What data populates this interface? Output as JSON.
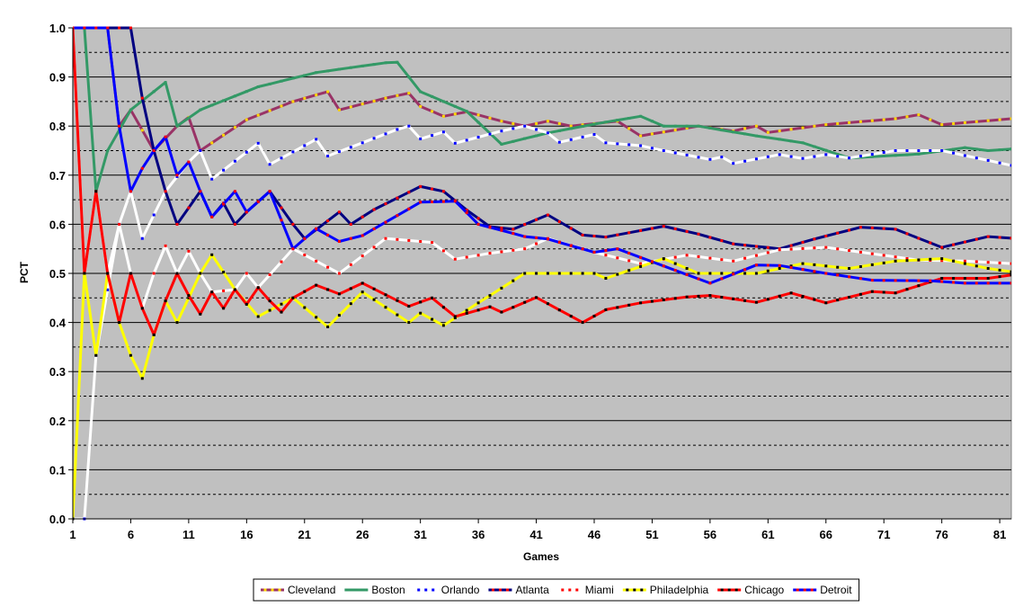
{
  "chart_data": {
    "type": "line",
    "xlabel": "Games",
    "ylabel": "PCT",
    "xlim": [
      1,
      82
    ],
    "ylim": [
      0,
      1
    ],
    "x_ticks": [
      1,
      6,
      11,
      16,
      21,
      26,
      31,
      36,
      41,
      46,
      51,
      56,
      61,
      66,
      71,
      76,
      81
    ],
    "y_ticks": [
      "0.0",
      "0.1",
      "0.2",
      "0.3",
      "0.4",
      "0.5",
      "0.6",
      "0.7",
      "0.8",
      "0.9",
      "1.0"
    ],
    "grid": true,
    "plot_background": "#c0c0c0",
    "legend_position": "bottom",
    "series": [
      {
        "name": "Cleveland",
        "color": "#993366",
        "dot_color": "#ffd700",
        "keypoints": [
          [
            1,
            1
          ],
          [
            4,
            1
          ],
          [
            5,
            0.8
          ],
          [
            6,
            0.833
          ],
          [
            8,
            0.75
          ],
          [
            10,
            0.8
          ],
          [
            11,
            0.818
          ],
          [
            12,
            0.75
          ],
          [
            16,
            0.813
          ],
          [
            20,
            0.85
          ],
          [
            23,
            0.87
          ],
          [
            24,
            0.833
          ],
          [
            28,
            0.857
          ],
          [
            30,
            0.867
          ],
          [
            31,
            0.84
          ],
          [
            33,
            0.82
          ],
          [
            35,
            0.829
          ],
          [
            38,
            0.81
          ],
          [
            40,
            0.8
          ],
          [
            42,
            0.81
          ],
          [
            44,
            0.8
          ],
          [
            48,
            0.81
          ],
          [
            50,
            0.78
          ],
          [
            55,
            0.8
          ],
          [
            58,
            0.79
          ],
          [
            60,
            0.8
          ],
          [
            61,
            0.787
          ],
          [
            66,
            0.803
          ],
          [
            72,
            0.815
          ],
          [
            74,
            0.823
          ],
          [
            76,
            0.803
          ],
          [
            82,
            0.815
          ],
          [
            83,
            0.805
          ]
        ]
      },
      {
        "name": "Boston",
        "color": "#339966",
        "dot_color": "#339966",
        "keypoints": [
          [
            1,
            1
          ],
          [
            2,
            1
          ],
          [
            3,
            0.667
          ],
          [
            4,
            0.75
          ],
          [
            6,
            0.833
          ],
          [
            9,
            0.889
          ],
          [
            10,
            0.8
          ],
          [
            12,
            0.833
          ],
          [
            17,
            0.88
          ],
          [
            22,
            0.909
          ],
          [
            28,
            0.929
          ],
          [
            29,
            0.93
          ],
          [
            31,
            0.87
          ],
          [
            35,
            0.83
          ],
          [
            38,
            0.763
          ],
          [
            42,
            0.786
          ],
          [
            46,
            0.804
          ],
          [
            50,
            0.82
          ],
          [
            52,
            0.8
          ],
          [
            55,
            0.8
          ],
          [
            60,
            0.78
          ],
          [
            64,
            0.766
          ],
          [
            68,
            0.735
          ],
          [
            74,
            0.743
          ],
          [
            78,
            0.756
          ],
          [
            80,
            0.75
          ],
          [
            83,
            0.755
          ]
        ]
      },
      {
        "name": "Orlando",
        "color": "#ffffff",
        "dot_color": "#0000ff",
        "keypoints": [
          [
            1,
            0
          ],
          [
            2,
            0
          ],
          [
            3,
            0.333
          ],
          [
            5,
            0.6
          ],
          [
            6,
            0.667
          ],
          [
            7,
            0.571
          ],
          [
            9,
            0.667
          ],
          [
            11,
            0.727
          ],
          [
            12,
            0.75
          ],
          [
            13,
            0.692
          ],
          [
            17,
            0.765
          ],
          [
            18,
            0.722
          ],
          [
            22,
            0.773
          ],
          [
            23,
            0.739
          ],
          [
            29,
            0.793
          ],
          [
            30,
            0.8
          ],
          [
            31,
            0.774
          ],
          [
            33,
            0.788
          ],
          [
            34,
            0.765
          ],
          [
            38,
            0.79
          ],
          [
            40,
            0.8
          ],
          [
            42,
            0.786
          ],
          [
            43,
            0.767
          ],
          [
            46,
            0.783
          ],
          [
            47,
            0.766
          ],
          [
            50,
            0.76
          ],
          [
            52,
            0.75
          ],
          [
            56,
            0.732
          ],
          [
            57,
            0.737
          ],
          [
            58,
            0.724
          ],
          [
            62,
            0.742
          ],
          [
            64,
            0.734
          ],
          [
            66,
            0.742
          ],
          [
            68,
            0.735
          ],
          [
            72,
            0.75
          ],
          [
            76,
            0.75
          ],
          [
            82,
            0.72
          ],
          [
            83,
            0.72
          ]
        ]
      },
      {
        "name": "Atlanta",
        "color": "#000080",
        "dot_color": "#ff0000",
        "keypoints": [
          [
            1,
            1
          ],
          [
            5,
            1
          ],
          [
            6,
            1
          ],
          [
            7,
            0.857
          ],
          [
            8,
            0.75
          ],
          [
            9,
            0.667
          ],
          [
            10,
            0.6
          ],
          [
            12,
            0.667
          ],
          [
            13,
            0.615
          ],
          [
            14,
            0.643
          ],
          [
            15,
            0.6
          ],
          [
            16,
            0.625
          ],
          [
            18,
            0.667
          ],
          [
            20,
            0.6
          ],
          [
            21,
            0.571
          ],
          [
            24,
            0.625
          ],
          [
            25,
            0.6
          ],
          [
            27,
            0.63
          ],
          [
            31,
            0.677
          ],
          [
            33,
            0.667
          ],
          [
            35,
            0.629
          ],
          [
            37,
            0.595
          ],
          [
            39,
            0.59
          ],
          [
            42,
            0.619
          ],
          [
            45,
            0.578
          ],
          [
            47,
            0.574
          ],
          [
            52,
            0.596
          ],
          [
            55,
            0.58
          ],
          [
            58,
            0.56
          ],
          [
            62,
            0.55
          ],
          [
            65,
            0.57
          ],
          [
            69,
            0.594
          ],
          [
            72,
            0.59
          ],
          [
            76,
            0.553
          ],
          [
            80,
            0.575
          ],
          [
            83,
            0.57
          ]
        ]
      },
      {
        "name": "Miami",
        "color": "#ffffff",
        "dot_color": "#ff0000",
        "keypoints": [
          [
            1,
            1
          ],
          [
            2,
            0.5
          ],
          [
            3,
            0.667
          ],
          [
            4,
            0.5
          ],
          [
            5,
            0.6
          ],
          [
            6,
            0.5
          ],
          [
            7,
            0.429
          ],
          [
            8,
            0.5
          ],
          [
            9,
            0.556
          ],
          [
            10,
            0.5
          ],
          [
            11,
            0.545
          ],
          [
            12,
            0.5
          ],
          [
            13,
            0.462
          ],
          [
            15,
            0.467
          ],
          [
            16,
            0.5
          ],
          [
            17,
            0.471
          ],
          [
            20,
            0.55
          ],
          [
            24,
            0.5
          ],
          [
            28,
            0.571
          ],
          [
            30,
            0.567
          ],
          [
            32,
            0.563
          ],
          [
            34,
            0.529
          ],
          [
            37,
            0.541
          ],
          [
            40,
            0.55
          ],
          [
            42,
            0.571
          ],
          [
            46,
            0.543
          ],
          [
            50,
            0.52
          ],
          [
            54,
            0.537
          ],
          [
            58,
            0.525
          ],
          [
            62,
            0.548
          ],
          [
            66,
            0.553
          ],
          [
            70,
            0.54
          ],
          [
            74,
            0.527
          ],
          [
            78,
            0.525
          ],
          [
            82,
            0.52
          ],
          [
            83,
            0.53
          ]
        ]
      },
      {
        "name": "Philadelphia",
        "color": "#ffff00",
        "dot_color": "#000000",
        "keypoints": [
          [
            1,
            0
          ],
          [
            2,
            0.5
          ],
          [
            3,
            0.333
          ],
          [
            4,
            0.5
          ],
          [
            5,
            0.4
          ],
          [
            6,
            0.333
          ],
          [
            7,
            0.286
          ],
          [
            8,
            0.375
          ],
          [
            9,
            0.444
          ],
          [
            10,
            0.4
          ],
          [
            12,
            0.5
          ],
          [
            13,
            0.538
          ],
          [
            15,
            0.467
          ],
          [
            17,
            0.412
          ],
          [
            20,
            0.45
          ],
          [
            23,
            0.391
          ],
          [
            26,
            0.462
          ],
          [
            30,
            0.4
          ],
          [
            31,
            0.419
          ],
          [
            33,
            0.394
          ],
          [
            36,
            0.44
          ],
          [
            40,
            0.5
          ],
          [
            44,
            0.5
          ],
          [
            46,
            0.5
          ],
          [
            47,
            0.49
          ],
          [
            52,
            0.53
          ],
          [
            55,
            0.5
          ],
          [
            58,
            0.5
          ],
          [
            60,
            0.5
          ],
          [
            64,
            0.52
          ],
          [
            68,
            0.51
          ],
          [
            72,
            0.525
          ],
          [
            76,
            0.53
          ],
          [
            80,
            0.51
          ],
          [
            83,
            0.5
          ]
        ]
      },
      {
        "name": "Chicago",
        "color": "#ff0000",
        "dot_color": "#000000",
        "keypoints": [
          [
            1,
            1
          ],
          [
            2,
            0.5
          ],
          [
            3,
            0.667
          ],
          [
            4,
            0.5
          ],
          [
            5,
            0.4
          ],
          [
            6,
            0.5
          ],
          [
            7,
            0.429
          ],
          [
            8,
            0.375
          ],
          [
            9,
            0.444
          ],
          [
            10,
            0.5
          ],
          [
            11,
            0.455
          ],
          [
            12,
            0.417
          ],
          [
            13,
            0.462
          ],
          [
            14,
            0.429
          ],
          [
            15,
            0.467
          ],
          [
            16,
            0.437
          ],
          [
            17,
            0.471
          ],
          [
            18,
            0.444
          ],
          [
            19,
            0.421
          ],
          [
            20,
            0.45
          ],
          [
            22,
            0.476
          ],
          [
            24,
            0.458
          ],
          [
            26,
            0.48
          ],
          [
            30,
            0.433
          ],
          [
            32,
            0.45
          ],
          [
            34,
            0.412
          ],
          [
            37,
            0.432
          ],
          [
            38,
            0.421
          ],
          [
            41,
            0.451
          ],
          [
            45,
            0.4
          ],
          [
            47,
            0.426
          ],
          [
            50,
            0.44
          ],
          [
            54,
            0.452
          ],
          [
            56,
            0.455
          ],
          [
            60,
            0.441
          ],
          [
            63,
            0.46
          ],
          [
            66,
            0.44
          ],
          [
            70,
            0.463
          ],
          [
            72,
            0.46
          ],
          [
            76,
            0.49
          ],
          [
            80,
            0.49
          ],
          [
            83,
            0.5
          ]
        ]
      },
      {
        "name": "Detroit",
        "color": "#0000ff",
        "dot_color": "#ff0000",
        "keypoints": [
          [
            1,
            1
          ],
          [
            3,
            1
          ],
          [
            4,
            1
          ],
          [
            5,
            0.8
          ],
          [
            6,
            0.667
          ],
          [
            7,
            0.714
          ],
          [
            8,
            0.75
          ],
          [
            9,
            0.778
          ],
          [
            10,
            0.7
          ],
          [
            11,
            0.727
          ],
          [
            12,
            0.667
          ],
          [
            13,
            0.615
          ],
          [
            15,
            0.667
          ],
          [
            16,
            0.625
          ],
          [
            18,
            0.667
          ],
          [
            20,
            0.55
          ],
          [
            22,
            0.591
          ],
          [
            24,
            0.565
          ],
          [
            26,
            0.577
          ],
          [
            31,
            0.645
          ],
          [
            34,
            0.647
          ],
          [
            36,
            0.6
          ],
          [
            40,
            0.575
          ],
          [
            42,
            0.57
          ],
          [
            46,
            0.543
          ],
          [
            48,
            0.55
          ],
          [
            56,
            0.48
          ],
          [
            60,
            0.517
          ],
          [
            62,
            0.516
          ],
          [
            66,
            0.5
          ],
          [
            70,
            0.486
          ],
          [
            75,
            0.485
          ],
          [
            78,
            0.48
          ],
          [
            82,
            0.48
          ],
          [
            83,
            0.475
          ]
        ]
      }
    ]
  }
}
